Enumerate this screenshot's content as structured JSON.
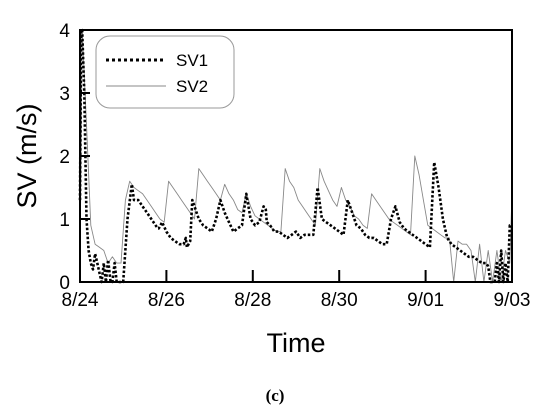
{
  "caption": "(c)",
  "chart_data": {
    "type": "line",
    "xlabel": "Time",
    "ylabel": "SV (m/s)",
    "xlim": [
      "8/24",
      "9/03"
    ],
    "ylim": [
      0,
      4
    ],
    "x_ticks": [
      "8/24",
      "8/26",
      "8/28",
      "8/30",
      "9/01",
      "9/03"
    ],
    "y_ticks": [
      "0",
      "1",
      "2",
      "3",
      "4"
    ],
    "grid": false,
    "legend": "top-left",
    "series": [
      {
        "name": "SV1",
        "style": "dotted",
        "color": "#000000",
        "x": [
          "8/24 00:00",
          "8/24 00:36",
          "8/24 01:12",
          "8/24 02:24",
          "8/24 03:36",
          "8/24 04:48",
          "8/24 06:00",
          "8/24 07:12",
          "8/24 08:24",
          "8/24 09:36",
          "8/24 10:48",
          "8/24 12:00",
          "8/24 13:12",
          "8/24 14:24",
          "8/24 15:36",
          "8/24 17:00",
          "8/24 18:00",
          "8/24 19:12",
          "8/24 20:24",
          "8/24 21:36",
          "8/25 00:00",
          "8/25 02:24",
          "8/25 04:48",
          "8/25 06:00",
          "8/25 08:24",
          "8/25 10:48",
          "8/25 13:12",
          "8/25 15:36",
          "8/25 18:00",
          "8/25 19:12",
          "8/25 19:48",
          "8/25 21:36",
          "8/26 00:00",
          "8/26 02:24",
          "8/26 04:48",
          "8/26 07:12",
          "8/26 09:36",
          "8/26 10:48",
          "8/26 11:24",
          "8/26 13:12",
          "8/26 14:24",
          "8/26 15:36",
          "8/26 18:00",
          "8/26 20:24",
          "8/26 22:48",
          "8/27 01:12",
          "8/27 03:36",
          "8/27 06:00",
          "8/27 08:24",
          "8/27 10:48",
          "8/27 13:12",
          "8/27 15:36",
          "8/27 18:00",
          "8/27 20:24",
          "8/27 22:48",
          "8/28 01:12",
          "8/28 03:36",
          "8/28 06:00",
          "8/28 07:12",
          "8/28 07:48",
          "8/28 09:36",
          "8/28 12:00",
          "8/28 14:24",
          "8/28 16:48",
          "8/28 19:12",
          "8/28 21:36",
          "8/29 00:00",
          "8/29 02:24",
          "8/29 04:48",
          "8/29 07:12",
          "8/29 09:36",
          "8/29 12:00",
          "8/29 14:24",
          "8/29 16:48",
          "8/29 19:12",
          "8/29 21:36",
          "8/30 00:00",
          "8/30 02:24",
          "8/30 04:48",
          "8/30 07:12",
          "8/30 09:36",
          "8/30 12:00",
          "8/30 14:24",
          "8/30 16:48",
          "8/30 19:12",
          "8/30 21:36",
          "8/31 00:00",
          "8/31 02:24",
          "8/31 04:48",
          "8/31 07:12",
          "8/31 09:36",
          "8/31 12:00",
          "8/31 14:24",
          "8/31 16:48",
          "8/31 19:12",
          "8/31 21:36",
          "9/01 00:00",
          "9/01 02:24",
          "9/01 04:48",
          "9/01 07:12",
          "9/01 09:36",
          "9/01 12:00",
          "9/01 14:24",
          "9/01 16:48",
          "9/01 19:12",
          "9/01 21:36",
          "9/02 00:00",
          "9/02 02:24",
          "9/02 04:48",
          "9/02 07:12",
          "9/02 09:36",
          "9/02 10:48",
          "9/02 12:00",
          "9/02 13:12",
          "9/02 14:24",
          "9/02 15:36",
          "9/02 16:48",
          "9/02 18:00",
          "9/02 19:12",
          "9/02 20:24",
          "9/02 21:36",
          "9/02 22:48",
          "9/03 00:00"
        ],
        "y": [
          1.3,
          4.0,
          4.0,
          3.0,
          1.0,
          0.5,
          0.3,
          0.2,
          0.45,
          0.3,
          0.15,
          0.0,
          0.3,
          0.0,
          0.35,
          0.0,
          0.0,
          0.3,
          0.0,
          0.0,
          0.0,
          1.0,
          1.55,
          1.3,
          1.3,
          1.2,
          1.1,
          1.0,
          0.9,
          0.85,
          0.85,
          0.95,
          0.8,
          0.7,
          0.65,
          0.6,
          0.6,
          0.7,
          0.55,
          0.65,
          1.3,
          1.2,
          1.0,
          0.9,
          0.85,
          0.8,
          1.0,
          1.3,
          1.1,
          0.95,
          0.8,
          0.85,
          0.9,
          1.4,
          1.0,
          0.9,
          0.95,
          1.2,
          1.15,
          0.95,
          0.9,
          0.8,
          0.8,
          0.75,
          0.7,
          0.75,
          0.8,
          0.7,
          0.75,
          0.75,
          0.75,
          1.5,
          1.0,
          0.95,
          0.9,
          0.85,
          0.8,
          0.75,
          1.3,
          1.1,
          0.9,
          0.85,
          0.75,
          0.7,
          0.7,
          0.65,
          0.6,
          0.6,
          1.0,
          1.2,
          0.95,
          0.85,
          0.8,
          0.75,
          0.7,
          0.65,
          0.6,
          0.55,
          1.9,
          1.5,
          1.0,
          0.7,
          0.6,
          0.55,
          0.5,
          0.45,
          0.4,
          0.4,
          0.35,
          0.3,
          0.3,
          0.25,
          0.0,
          0.0,
          0.0,
          0.3,
          0.0,
          0.5,
          0.0,
          0.3,
          0.0,
          0.9,
          0.9
        ]
      },
      {
        "name": "SV2",
        "style": "solid-thin",
        "color": "#888888",
        "x": [
          "8/24 00:00",
          "8/24 01:12",
          "8/24 03:36",
          "8/24 06:00",
          "8/24 08:24",
          "8/24 10:48",
          "8/24 13:12",
          "8/24 15:36",
          "8/24 18:00",
          "8/24 20:24",
          "8/24 22:48",
          "8/25 01:12",
          "8/25 03:36",
          "8/25 06:00",
          "8/25 08:24",
          "8/25 10:48",
          "8/25 13:12",
          "8/25 15:36",
          "8/25 18:00",
          "8/25 20:24",
          "8/25 22:48",
          "8/26 01:12",
          "8/26 03:36",
          "8/26 06:00",
          "8/26 08:24",
          "8/26 10:48",
          "8/26 13:12",
          "8/26 15:36",
          "8/26 18:00",
          "8/26 20:24",
          "8/26 22:48",
          "8/27 01:12",
          "8/27 03:36",
          "8/27 06:00",
          "8/27 08:24",
          "8/27 10:48",
          "8/27 13:12",
          "8/27 15:36",
          "8/27 18:00",
          "8/27 20:24",
          "8/27 22:48",
          "8/28 01:12",
          "8/28 03:36",
          "8/28 06:00",
          "8/28 08:24",
          "8/28 10:48",
          "8/28 13:12",
          "8/28 15:36",
          "8/28 18:00",
          "8/28 20:24",
          "8/28 22:48",
          "8/29 01:12",
          "8/29 03:36",
          "8/29 06:00",
          "8/29 08:24",
          "8/29 10:48",
          "8/29 13:12",
          "8/29 15:36",
          "8/29 18:00",
          "8/29 20:24",
          "8/29 22:48",
          "8/30 01:12",
          "8/30 03:36",
          "8/30 06:00",
          "8/30 08:24",
          "8/30 10:48",
          "8/30 13:12",
          "8/30 15:36",
          "8/30 18:00",
          "8/30 20:24",
          "8/30 22:48",
          "8/31 01:12",
          "8/31 03:36",
          "8/31 06:00",
          "8/31 08:24",
          "8/31 10:48",
          "8/31 13:12",
          "8/31 15:36",
          "8/31 18:00",
          "8/31 20:24",
          "8/31 22:48",
          "9/01 01:12",
          "9/01 03:36",
          "9/01 06:00",
          "9/01 08:24",
          "9/01 10:48",
          "9/01 13:12",
          "9/01 15:36",
          "9/01 18:00",
          "9/01 20:24",
          "9/01 22:48",
          "9/02 01:12",
          "9/02 03:36",
          "9/02 06:00",
          "9/02 08:24",
          "9/02 10:48",
          "9/02 13:12",
          "9/02 15:36",
          "9/02 18:00",
          "9/02 20:24",
          "9/02 22:48",
          "9/03 00:00"
        ],
        "y": [
          0.3,
          4.0,
          2.5,
          0.9,
          0.6,
          0.55,
          0.5,
          0.3,
          0.4,
          0.3,
          0.3,
          1.3,
          1.6,
          1.5,
          1.45,
          1.4,
          1.3,
          1.2,
          1.1,
          1.0,
          0.95,
          1.6,
          1.5,
          1.4,
          1.3,
          1.2,
          1.1,
          1.0,
          1.8,
          1.7,
          1.6,
          1.5,
          1.4,
          1.3,
          1.55,
          1.4,
          1.3,
          1.15,
          1.1,
          1.4,
          1.2,
          1.05,
          1.0,
          0.95,
          0.9,
          0.85,
          0.8,
          0.8,
          1.8,
          1.6,
          1.5,
          1.3,
          1.2,
          1.1,
          1.0,
          0.9,
          1.8,
          1.6,
          1.45,
          1.3,
          1.2,
          1.5,
          1.3,
          1.2,
          1.05,
          1.0,
          0.9,
          0.85,
          1.4,
          1.3,
          1.2,
          1.1,
          1.0,
          0.95,
          0.9,
          0.85,
          0.8,
          0.75,
          2.0,
          1.7,
          1.3,
          0.9,
          0.85,
          0.8,
          0.75,
          0.7,
          0.7,
          0.0,
          0.65,
          0.6,
          0.6,
          0.5,
          0.0,
          0.6,
          0.0,
          0.5,
          0.0,
          0.5,
          0.0,
          0.5,
          0.3,
          1.4
        ]
      }
    ]
  }
}
